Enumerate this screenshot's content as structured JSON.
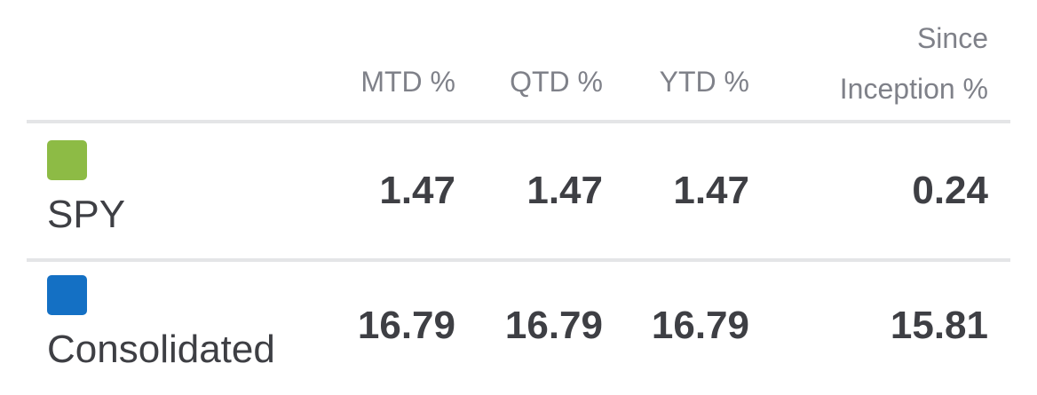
{
  "header": {
    "mtd": "MTD %",
    "qtd": "QTD %",
    "ytd": "YTD %",
    "since_line1": "Since",
    "since_line2": "Inception %"
  },
  "rows": [
    {
      "name": "SPY",
      "color": "#8dbb45",
      "mtd": "1.47",
      "qtd": "1.47",
      "ytd": "1.47",
      "since_inception": "0.24"
    },
    {
      "name": "Consolidated",
      "color": "#1470c4",
      "mtd": "16.79",
      "qtd": "16.79",
      "ytd": "16.79",
      "since_inception": "15.81"
    }
  ]
}
